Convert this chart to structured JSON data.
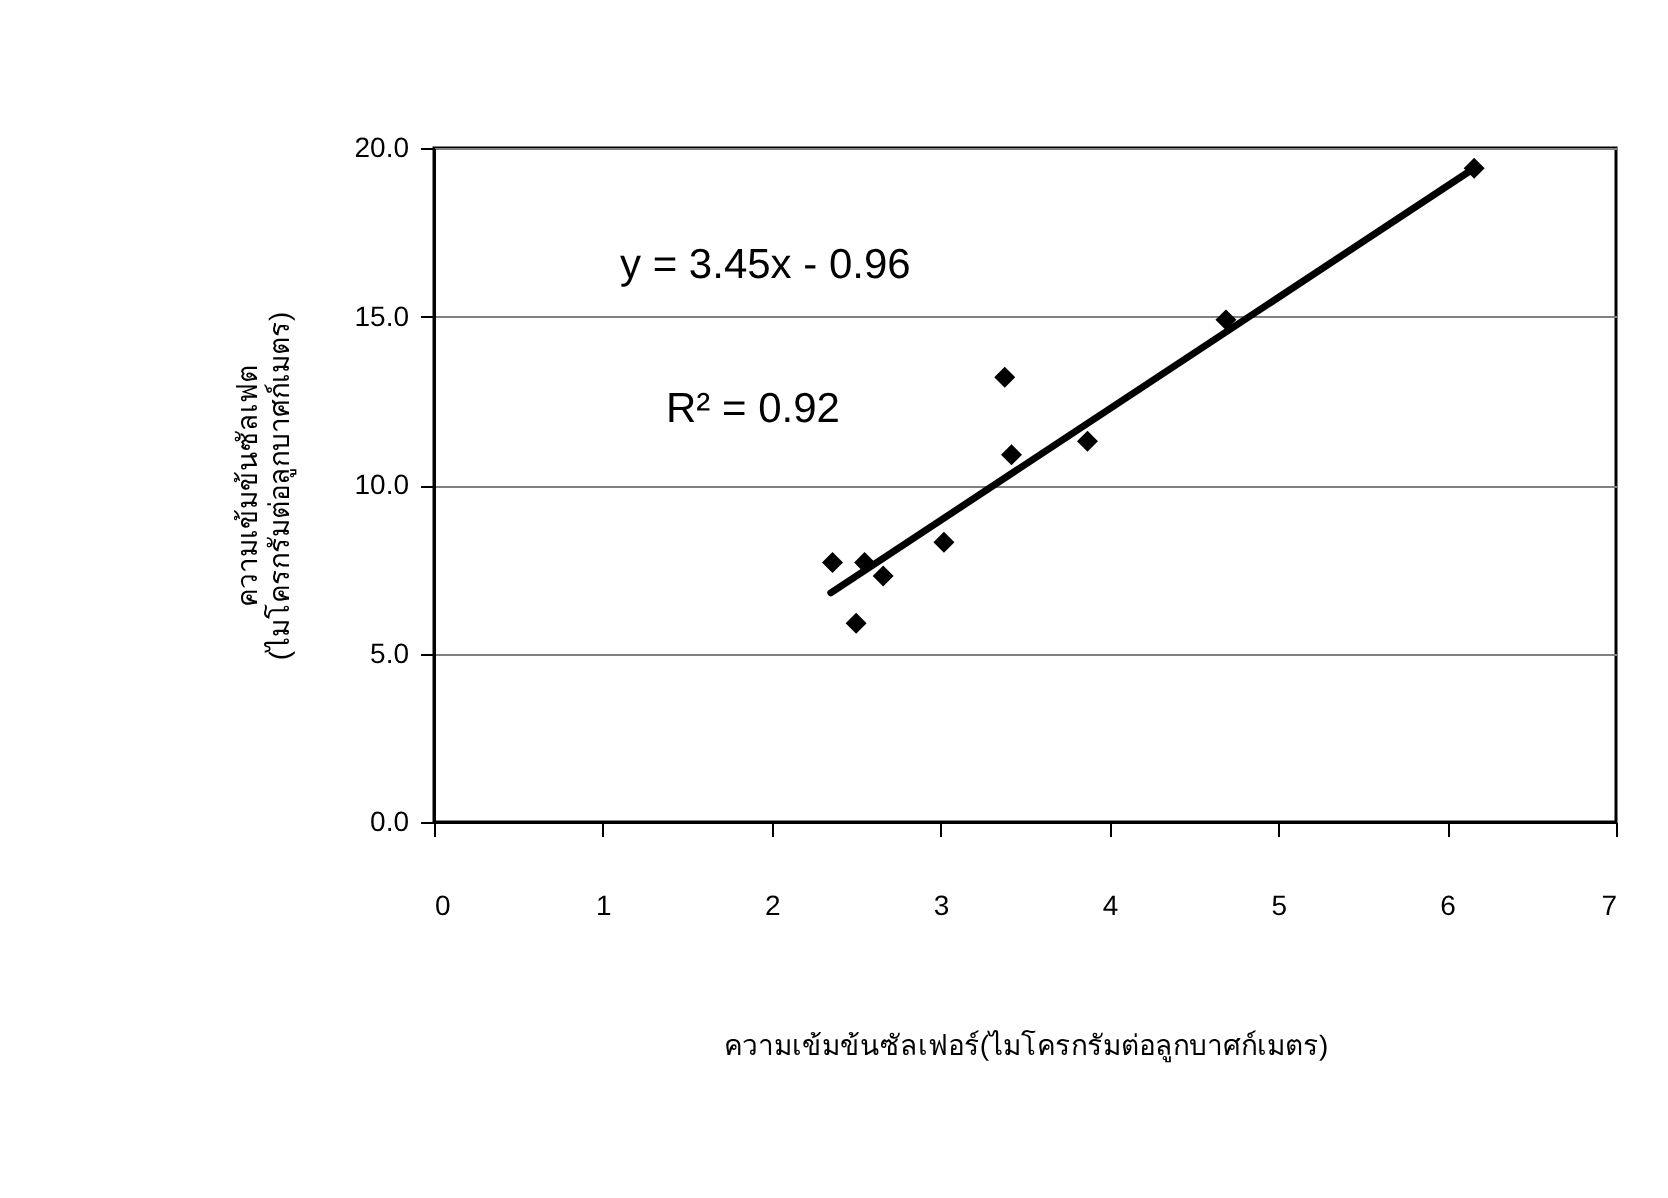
{
  "chart_data": {
    "type": "scatter",
    "xlabel": "ความเข้มข้นซัลเฟอร์(ไมโครกรัมต่อลูกบาศก์เมตร)",
    "ylabel": "ความเข้มข้นซัลเฟต\n(ไมโครกรัมต่อลูกบาศก์เมตร)",
    "series": [
      {
        "color": "#000000",
        "marker": "diamond",
        "x": [
          2.36,
          2.55,
          2.66,
          2.5,
          3.02,
          3.38,
          3.42,
          3.87,
          4.69,
          6.16
        ],
        "values": [
          7.7,
          7.7,
          7.3,
          5.9,
          8.3,
          13.2,
          10.9,
          11.3,
          14.9,
          19.4
        ]
      },
      {
        "type": "line",
        "color": "#000000",
        "x": [
          2.35,
          6.16
        ],
        "values": [
          6.8,
          19.4
        ]
      }
    ],
    "annotations": [
      "y = 3.45x - 0.96",
      "R² = 0.92"
    ],
    "xlim": [
      0,
      7
    ],
    "xticks": [
      0,
      1,
      2,
      3,
      4,
      5,
      6,
      7
    ],
    "ylim": [
      0,
      20
    ],
    "yticks": [
      {
        "value": 0,
        "label": "0.0"
      },
      {
        "value": 5,
        "label": "5.0"
      },
      {
        "value": 10,
        "label": "10.0"
      },
      {
        "value": 15,
        "label": "15.0"
      },
      {
        "value": 20,
        "label": "20.0"
      }
    ],
    "grid": "y"
  }
}
